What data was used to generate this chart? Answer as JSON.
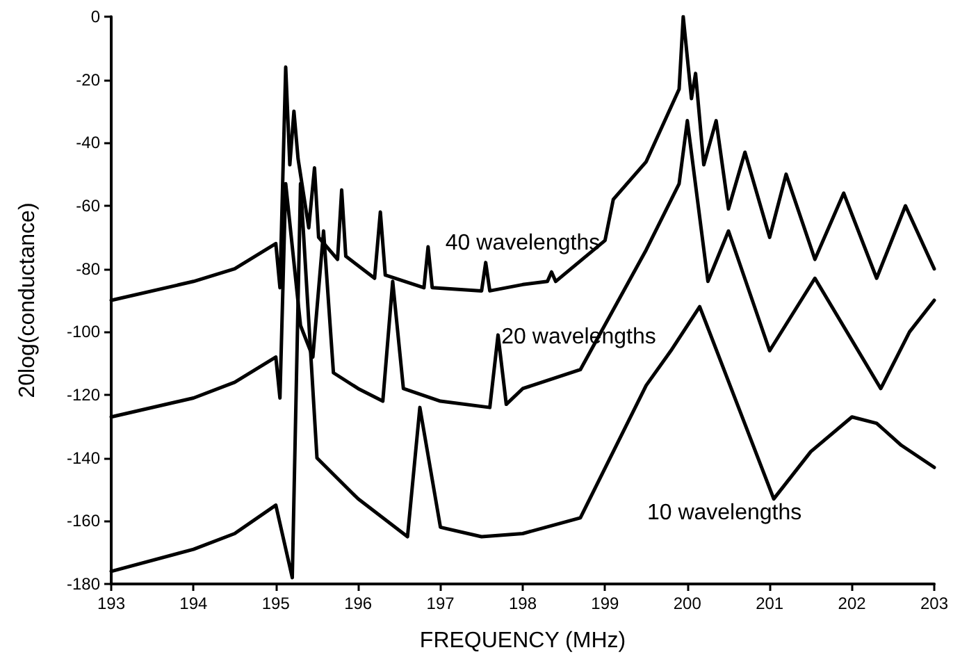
{
  "chart_data": {
    "type": "line",
    "xlabel": "FREQUENCY (MHz)",
    "ylabel": "20log(conductance)",
    "xlim": [
      193,
      203
    ],
    "xticks": [
      193,
      194,
      195,
      196,
      197,
      198,
      199,
      200,
      201,
      202,
      203
    ],
    "ylim": [
      -180,
      0
    ],
    "yticks": [
      -180,
      -160,
      -140,
      -120,
      -100,
      -80,
      -60,
      -40,
      -20,
      0
    ],
    "grid": false,
    "marker": "none",
    "line_style": "solid",
    "series": [
      {
        "name": "40 wavelengths",
        "color": "#000000",
        "x": [
          193,
          194,
          194.5,
          195,
          195.05,
          195.12,
          195.17,
          195.22,
          195.27,
          195.4,
          195.47,
          195.52,
          195.75,
          195.8,
          195.85,
          196.2,
          196.27,
          196.33,
          196.8,
          196.85,
          196.9,
          197.5,
          197.55,
          197.6,
          198,
          198.3,
          198.35,
          198.4,
          199,
          199.1,
          199.5,
          199.9,
          199.95,
          200.05,
          200.1,
          200.2,
          200.35,
          200.5,
          200.7,
          201,
          201.2,
          201.55,
          201.9,
          202.3,
          202.65,
          203
        ],
        "values": [
          -90,
          -84,
          -80,
          -72,
          -86,
          -16,
          -47,
          -30,
          -45,
          -67,
          -48,
          -70,
          -77,
          -55,
          -76,
          -83,
          -62,
          -82,
          -86,
          -73,
          -86,
          -87,
          -78,
          -87,
          -85,
          -84,
          -81,
          -84,
          -71,
          -58,
          -46,
          -23,
          0,
          -26,
          -18,
          -47,
          -33,
          -61,
          -43,
          -70,
          -50,
          -77,
          -56,
          -83,
          -60,
          -80
        ]
      },
      {
        "name": "20 wavelengths",
        "color": "#000000",
        "x": [
          193,
          194,
          194.5,
          195,
          195.05,
          195.12,
          195.3,
          195.45,
          195.58,
          195.7,
          196,
          196.3,
          196.42,
          196.55,
          197,
          197.6,
          197.7,
          197.8,
          198,
          198.7,
          199.5,
          199.9,
          200,
          200.25,
          200.5,
          201,
          201.55,
          202.35,
          202.7,
          203
        ],
        "values": [
          -127,
          -121,
          -116,
          -108,
          -121,
          -53,
          -98,
          -108,
          -68,
          -113,
          -118,
          -122,
          -84,
          -118,
          -122,
          -124,
          -101,
          -123,
          -118,
          -112,
          -74,
          -53,
          -33,
          -84,
          -68,
          -106,
          -83,
          -118,
          -100,
          -90
        ]
      },
      {
        "name": "10 wavelengths",
        "color": "#000000",
        "x": [
          193,
          194,
          194.5,
          195,
          195.2,
          195.3,
          195.5,
          196,
          196.6,
          196.75,
          197,
          197.5,
          198,
          198.7,
          199.5,
          199.8,
          200.15,
          201.05,
          201.5,
          202,
          202.3,
          202.6,
          203
        ],
        "values": [
          -176,
          -169,
          -164,
          -155,
          -178,
          -53,
          -140,
          -153,
          -165,
          -124,
          -162,
          -165,
          -164,
          -159,
          -117,
          -106,
          -92,
          -153,
          -138,
          -127,
          -129,
          -136,
          -143
        ]
      }
    ]
  }
}
